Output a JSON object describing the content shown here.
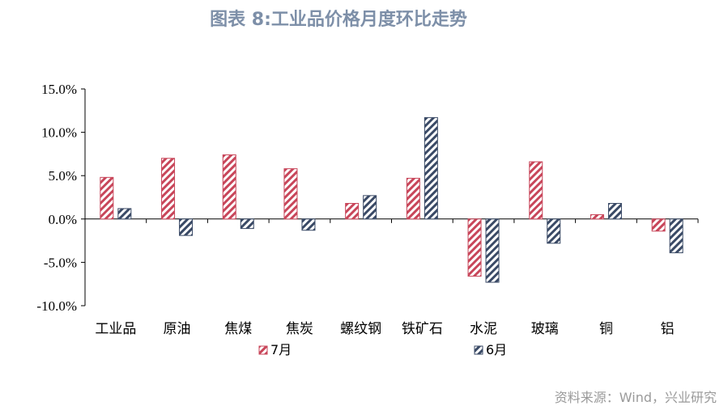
{
  "title": "图表 8:工业品价格月度环比走势",
  "source": "资料来源：Wind，兴业研究",
  "colors": {
    "s1": "#c8465a",
    "s2": "#3a4a66",
    "title": "#7d8fa8"
  },
  "chart_data": {
    "type": "bar",
    "title": "图表 8:工业品价格月度环比走势",
    "categories": [
      "工业品",
      "原油",
      "焦煤",
      "焦炭",
      "螺纹钢",
      "铁矿石",
      "水泥",
      "玻璃",
      "铜",
      "铝"
    ],
    "series": [
      {
        "name": "7月",
        "values": [
          4.8,
          7.0,
          7.4,
          5.8,
          1.8,
          4.7,
          -6.6,
          6.6,
          0.5,
          -1.4
        ]
      },
      {
        "name": "6月",
        "values": [
          1.2,
          -1.9,
          -1.1,
          -1.3,
          2.7,
          11.7,
          -7.3,
          -2.8,
          1.8,
          -3.9
        ]
      }
    ],
    "ylim": [
      -10,
      15
    ],
    "yticks": [
      15,
      10,
      5,
      0,
      -5,
      -10
    ],
    "ytick_labels": [
      "15.0%",
      "10.0%",
      "5.0%",
      "0.0%",
      "-5.0%",
      "-10.0%"
    ],
    "xlabel": "",
    "ylabel": "",
    "grid": false,
    "legend": "bottom"
  }
}
